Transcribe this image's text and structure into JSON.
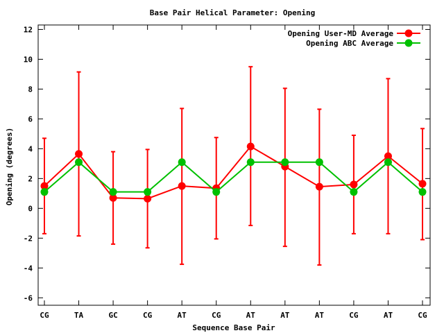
{
  "chart_data": {
    "type": "line",
    "title": "Base Pair Helical Parameter: Opening",
    "xlabel": "Sequence Base Pair",
    "ylabel": "Opening (degrees)",
    "ylim": [
      -6.5,
      12.3
    ],
    "yticks": [
      -6,
      -4,
      -2,
      0,
      2,
      4,
      6,
      8,
      10,
      12
    ],
    "categories": [
      "CG",
      "TA",
      "GC",
      "CG",
      "AT",
      "CG",
      "AT",
      "AT",
      "AT",
      "CG",
      "AT",
      "CG"
    ],
    "legend_position": "top-right",
    "grid": false,
    "series": [
      {
        "name": "Opening User-MD Average",
        "color": "#ff0000",
        "values": [
          1.5,
          3.65,
          0.7,
          0.65,
          1.5,
          1.35,
          4.15,
          2.8,
          1.45,
          1.6,
          3.5,
          1.65
        ],
        "err_low": [
          -1.7,
          -1.85,
          -2.4,
          -2.65,
          -3.75,
          -2.05,
          -1.15,
          -2.55,
          -3.8,
          -1.7,
          -1.7,
          -2.1
        ],
        "err_high": [
          4.7,
          9.15,
          3.8,
          3.95,
          6.7,
          4.75,
          9.5,
          8.05,
          6.65,
          4.9,
          8.7,
          5.35
        ]
      },
      {
        "name": "Opening ABC Average",
        "color": "#00c000",
        "values": [
          1.1,
          3.1,
          1.1,
          1.1,
          3.1,
          1.1,
          3.1,
          3.1,
          3.1,
          1.1,
          3.1,
          1.1
        ]
      }
    ]
  }
}
